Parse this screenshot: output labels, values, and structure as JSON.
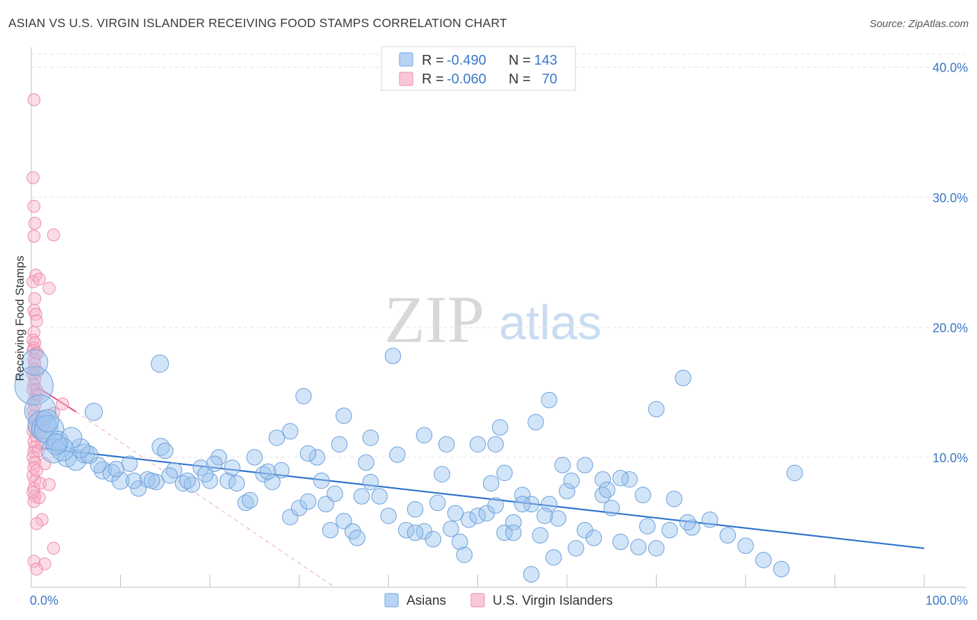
{
  "header": {
    "title": "ASIAN VS U.S. VIRGIN ISLANDER RECEIVING FOOD STAMPS CORRELATION CHART",
    "source": "Source: ZipAtlas.com"
  },
  "watermark": {
    "zip": "ZIP",
    "atlas": "atlas"
  },
  "legend": {
    "r_label": "R =",
    "n_label": "N =",
    "rows": [
      {
        "name": "Asians",
        "r": "-0.490",
        "n": "143",
        "color": "#7fb0e8"
      },
      {
        "name": "U.S. Virgin Islanders",
        "r": "-0.060",
        "n": "70",
        "color": "#f19bb6"
      }
    ]
  },
  "colors": {
    "asian_fill": "#9cc3ee",
    "asian_stroke": "#6a9fdc",
    "asian_line": "#2f74cc",
    "vi_fill": "#f7b3c8",
    "vi_stroke": "#ee8aab",
    "vi_line": "#e45c8c",
    "grid": "#e2e2e2",
    "tick_text": "#3a78c8"
  },
  "chart_data": {
    "type": "scatter",
    "title": "ASIAN VS U.S. VIRGIN ISLANDER RECEIVING FOOD STAMPS CORRELATION CHART",
    "xlabel": "",
    "ylabel": "Receiving Food Stamps",
    "xlim": [
      0,
      100
    ],
    "ylim": [
      0,
      41
    ],
    "x_tick_labels": [
      {
        "value": 0,
        "label": "0.0%"
      },
      {
        "value": 100,
        "label": "100.0%"
      }
    ],
    "y_tick_labels": [
      {
        "value": 10,
        "label": "10.0%"
      },
      {
        "value": 20,
        "label": "20.0%"
      },
      {
        "value": 30,
        "label": "30.0%"
      },
      {
        "value": 40,
        "label": "40.0%"
      }
    ],
    "grid": true,
    "legend_position": "top-center",
    "series": [
      {
        "name": "Asians",
        "r": -0.49,
        "n": 143,
        "trend": {
          "x0": 0,
          "y0": 10.8,
          "x1": 100,
          "y1": 3.0
        },
        "points": [
          [
            0.3,
            15.5,
            2.2
          ],
          [
            0.4,
            17.3,
            1.5
          ],
          [
            1.0,
            13.6,
            1.8
          ],
          [
            1.2,
            12.5,
            1.6
          ],
          [
            1.5,
            12.2,
            1.5
          ],
          [
            2.0,
            12.1,
            1.7
          ],
          [
            2.5,
            10.5,
            1.4
          ],
          [
            3.0,
            11.2,
            1.2
          ],
          [
            4.0,
            10.0,
            1.1
          ],
          [
            5.0,
            9.8,
            1.2
          ],
          [
            6.0,
            10.3,
            1.1
          ],
          [
            7.0,
            13.5,
            1.0
          ],
          [
            8.0,
            9.0,
            1.0
          ],
          [
            9.0,
            8.8,
            1.0
          ],
          [
            10.0,
            8.2,
            1.0
          ],
          [
            11.0,
            9.5,
            0.9
          ],
          [
            12.0,
            7.6,
            0.9
          ],
          [
            13.0,
            8.3,
            0.9
          ],
          [
            14.0,
            8.1,
            0.9
          ],
          [
            14.5,
            10.8,
            1.0
          ],
          [
            15.0,
            10.5,
            0.9
          ],
          [
            16.0,
            9.0,
            0.9
          ],
          [
            17.0,
            8.0,
            0.9
          ],
          [
            18.0,
            7.9,
            0.9
          ],
          [
            19.0,
            9.2,
            0.9
          ],
          [
            20.0,
            8.2,
            0.9
          ],
          [
            21.0,
            10.0,
            0.9
          ],
          [
            22.0,
            8.2,
            0.9
          ],
          [
            23.0,
            8.0,
            0.9
          ],
          [
            24.0,
            6.5,
            0.9
          ],
          [
            25.0,
            10.0,
            0.9
          ],
          [
            26.0,
            8.7,
            0.9
          ],
          [
            27.0,
            8.1,
            0.9
          ],
          [
            28.0,
            9.0,
            0.9
          ],
          [
            29.0,
            5.4,
            0.9
          ],
          [
            30.0,
            6.1,
            0.9
          ],
          [
            31.0,
            6.6,
            0.9
          ],
          [
            32.0,
            10.0,
            0.9
          ],
          [
            33.0,
            6.4,
            0.9
          ],
          [
            34.0,
            7.2,
            0.9
          ],
          [
            35.0,
            5.1,
            0.9
          ],
          [
            36.0,
            4.3,
            0.9
          ],
          [
            37.0,
            7.0,
            0.9
          ],
          [
            38.0,
            8.1,
            0.9
          ],
          [
            39.0,
            7.0,
            0.9
          ],
          [
            40.0,
            5.5,
            0.9
          ],
          [
            41.0,
            10.2,
            0.9
          ],
          [
            42.0,
            4.4,
            0.9
          ],
          [
            43.0,
            6.0,
            0.9
          ],
          [
            44.0,
            4.3,
            0.9
          ],
          [
            45.0,
            3.7,
            0.9
          ],
          [
            46.0,
            8.7,
            0.9
          ],
          [
            47.0,
            4.5,
            0.9
          ],
          [
            48.0,
            3.5,
            0.9
          ],
          [
            49.0,
            5.2,
            0.9
          ],
          [
            50.0,
            5.5,
            0.9
          ],
          [
            51.0,
            5.7,
            0.9
          ],
          [
            52.0,
            6.3,
            0.9
          ],
          [
            53.0,
            4.2,
            0.9
          ],
          [
            54.0,
            5.0,
            0.9
          ],
          [
            55.0,
            7.1,
            0.9
          ],
          [
            56.0,
            6.4,
            0.9
          ],
          [
            57.0,
            4.0,
            0.9
          ],
          [
            58.0,
            6.4,
            0.9
          ],
          [
            59.0,
            5.3,
            0.9
          ],
          [
            60.0,
            7.4,
            0.9
          ],
          [
            61.0,
            3.0,
            0.9
          ],
          [
            62.0,
            4.4,
            0.9
          ],
          [
            63.0,
            3.8,
            0.9
          ],
          [
            64.0,
            7.1,
            0.9
          ],
          [
            65.0,
            6.1,
            0.9
          ],
          [
            66.0,
            3.5,
            0.9
          ],
          [
            67.0,
            8.3,
            0.9
          ],
          [
            68.0,
            3.1,
            0.9
          ],
          [
            69.0,
            4.7,
            0.9
          ],
          [
            70.0,
            3.0,
            0.9
          ],
          [
            72.0,
            6.8,
            0.9
          ],
          [
            74.0,
            4.6,
            0.9
          ],
          [
            76.0,
            5.2,
            0.9
          ],
          [
            78.0,
            4.0,
            0.9
          ],
          [
            80.0,
            3.2,
            0.9
          ],
          [
            82.0,
            2.1,
            0.9
          ],
          [
            84.0,
            1.4,
            0.9
          ],
          [
            85.5,
            8.8,
            0.9
          ],
          [
            14.4,
            17.2,
            1.0
          ],
          [
            40.5,
            17.8,
            0.9
          ],
          [
            73.0,
            16.1,
            0.9
          ],
          [
            30.5,
            14.7,
            0.9
          ],
          [
            58.0,
            14.4,
            0.9
          ],
          [
            70.0,
            13.7,
            0.9
          ],
          [
            35.0,
            13.2,
            0.9
          ],
          [
            38.0,
            11.5,
            0.9
          ],
          [
            44.0,
            11.7,
            0.9
          ],
          [
            29.0,
            12.0,
            0.9
          ],
          [
            27.5,
            11.5,
            0.9
          ],
          [
            50.0,
            11.0,
            0.9
          ],
          [
            46.5,
            11.0,
            0.9
          ],
          [
            52.0,
            11.0,
            0.9
          ],
          [
            59.5,
            9.4,
            0.9
          ],
          [
            64.0,
            8.3,
            0.9
          ],
          [
            66.0,
            8.4,
            0.9
          ],
          [
            53.0,
            8.8,
            0.9
          ],
          [
            52.5,
            12.3,
            0.9
          ],
          [
            56.5,
            12.7,
            0.9
          ],
          [
            62.0,
            9.4,
            0.9
          ],
          [
            64.5,
            7.5,
            0.9
          ],
          [
            68.5,
            7.1,
            0.9
          ],
          [
            71.5,
            4.4,
            0.9
          ],
          [
            73.5,
            5.0,
            0.9
          ],
          [
            58.5,
            2.3,
            0.9
          ],
          [
            56.0,
            1.0,
            0.9
          ],
          [
            48.5,
            2.5,
            0.9
          ],
          [
            36.5,
            3.8,
            0.9
          ],
          [
            33.5,
            4.4,
            0.9
          ],
          [
            54.0,
            4.2,
            0.9
          ],
          [
            24.5,
            6.7,
            0.9
          ],
          [
            19.5,
            8.7,
            0.9
          ],
          [
            17.5,
            8.2,
            0.9
          ],
          [
            15.5,
            8.6,
            0.9
          ],
          [
            13.5,
            8.2,
            0.9
          ],
          [
            11.5,
            8.2,
            0.9
          ],
          [
            9.5,
            9.1,
            0.9
          ],
          [
            7.5,
            9.4,
            0.9
          ],
          [
            6.5,
            10.2,
            1.0
          ],
          [
            5.5,
            10.7,
            1.1
          ],
          [
            4.5,
            11.5,
            1.2
          ],
          [
            3.5,
            10.6,
            1.3
          ],
          [
            2.8,
            11.0,
            1.2
          ],
          [
            1.8,
            12.8,
            1.3
          ],
          [
            20.5,
            9.5,
            0.9
          ],
          [
            22.5,
            9.2,
            0.9
          ],
          [
            26.5,
            8.9,
            0.9
          ],
          [
            31.0,
            10.3,
            0.9
          ],
          [
            32.5,
            8.2,
            0.9
          ],
          [
            34.5,
            11.0,
            0.9
          ],
          [
            37.5,
            9.6,
            0.9
          ],
          [
            43.0,
            4.2,
            0.9
          ],
          [
            45.5,
            6.5,
            0.9
          ],
          [
            47.5,
            5.7,
            0.9
          ],
          [
            51.5,
            8.0,
            0.9
          ],
          [
            55.0,
            6.4,
            0.9
          ],
          [
            57.5,
            5.5,
            0.9
          ],
          [
            60.5,
            8.2,
            0.9
          ]
        ]
      },
      {
        "name": "U.S. Virgin Islanders",
        "r": -0.06,
        "n": 70,
        "trend": {
          "x0": 0,
          "y0": 15.7,
          "x1": 5.0,
          "y1": 13.5
        },
        "trend_dashed": {
          "x0": 5.0,
          "y0": 13.5,
          "x1": 34.0,
          "y1": 0.0
        },
        "points": [
          [
            0.3,
            37.5,
            0.7
          ],
          [
            0.2,
            31.5,
            0.7
          ],
          [
            0.3,
            29.3,
            0.7
          ],
          [
            0.4,
            28.0,
            0.7
          ],
          [
            0.3,
            27.0,
            0.7
          ],
          [
            2.5,
            27.1,
            0.7
          ],
          [
            0.5,
            24.0,
            0.7
          ],
          [
            0.2,
            23.5,
            0.7
          ],
          [
            2.0,
            23.0,
            0.7
          ],
          [
            0.4,
            22.2,
            0.7
          ],
          [
            0.3,
            21.3,
            0.7
          ],
          [
            0.5,
            21.0,
            0.7
          ],
          [
            0.3,
            19.6,
            0.7
          ],
          [
            0.2,
            19.0,
            0.7
          ],
          [
            0.4,
            18.8,
            0.7
          ],
          [
            0.3,
            18.4,
            0.7
          ],
          [
            0.2,
            18.2,
            0.7
          ],
          [
            0.5,
            18.0,
            0.7
          ],
          [
            0.3,
            17.5,
            0.7
          ],
          [
            0.4,
            17.2,
            0.7
          ],
          [
            0.3,
            16.8,
            0.7
          ],
          [
            0.2,
            16.4,
            0.7
          ],
          [
            0.4,
            16.0,
            0.7
          ],
          [
            0.3,
            15.6,
            0.7
          ],
          [
            0.2,
            15.2,
            0.7
          ],
          [
            0.5,
            14.8,
            0.7
          ],
          [
            0.3,
            14.4,
            0.7
          ],
          [
            0.4,
            14.0,
            0.7
          ],
          [
            0.2,
            13.6,
            0.7
          ],
          [
            0.3,
            13.2,
            0.7
          ],
          [
            0.4,
            12.8,
            0.7
          ],
          [
            0.3,
            12.4,
            0.7
          ],
          [
            0.2,
            12.0,
            0.7
          ],
          [
            0.5,
            11.6,
            0.7
          ],
          [
            0.3,
            11.2,
            0.7
          ],
          [
            0.4,
            10.8,
            0.7
          ],
          [
            0.3,
            10.4,
            0.7
          ],
          [
            0.2,
            10.0,
            0.7
          ],
          [
            0.4,
            9.6,
            0.7
          ],
          [
            0.3,
            9.2,
            0.7
          ],
          [
            0.2,
            8.6,
            0.7
          ],
          [
            0.4,
            8.2,
            0.7
          ],
          [
            0.3,
            7.6,
            0.7
          ],
          [
            0.4,
            7.0,
            0.7
          ],
          [
            0.3,
            6.6,
            0.7
          ],
          [
            1.0,
            8.0,
            0.7
          ],
          [
            1.2,
            5.2,
            0.7
          ],
          [
            0.6,
            4.9,
            0.7
          ],
          [
            2.5,
            3.0,
            0.7
          ],
          [
            0.3,
            2.0,
            0.7
          ],
          [
            1.5,
            1.8,
            0.7
          ],
          [
            0.6,
            1.4,
            0.7
          ],
          [
            3.5,
            14.1,
            0.7
          ],
          [
            2.5,
            13.4,
            0.7
          ],
          [
            1.5,
            12.5,
            0.7
          ],
          [
            1.2,
            11.0,
            0.7
          ],
          [
            0.8,
            10.5,
            0.7
          ],
          [
            1.5,
            9.5,
            0.7
          ],
          [
            0.6,
            9.0,
            0.7
          ],
          [
            2.0,
            7.9,
            0.7
          ],
          [
            0.9,
            6.9,
            0.7
          ],
          [
            0.2,
            7.3,
            0.7
          ],
          [
            0.6,
            15.2,
            0.7
          ],
          [
            0.7,
            16.6,
            0.7
          ],
          [
            0.7,
            18.0,
            0.7
          ],
          [
            1.0,
            12.0,
            0.7
          ],
          [
            1.1,
            13.0,
            0.7
          ],
          [
            0.8,
            14.8,
            0.7
          ],
          [
            0.6,
            20.5,
            0.7
          ],
          [
            0.9,
            23.7,
            0.7
          ]
        ]
      }
    ]
  }
}
